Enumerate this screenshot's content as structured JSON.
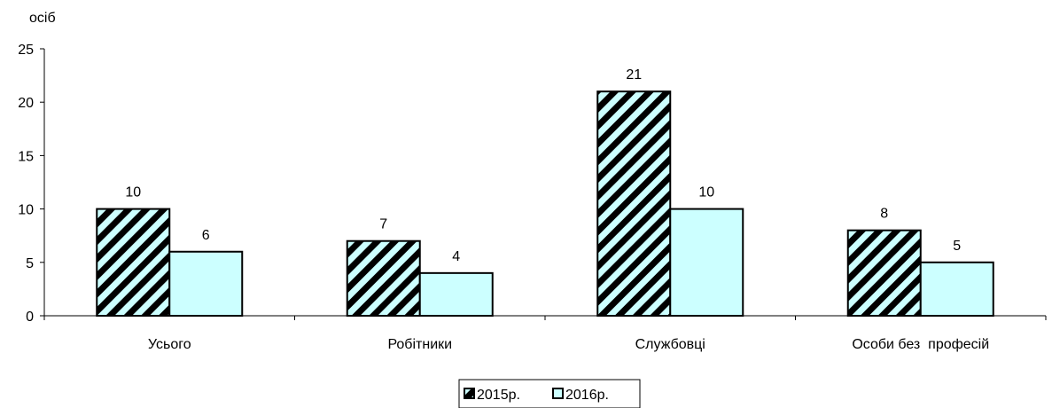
{
  "chart_data": {
    "type": "bar",
    "title": "",
    "ylabel": "осіб",
    "xlabel": "",
    "ylim": [
      0,
      25
    ],
    "yticks": [
      0,
      5,
      10,
      15,
      20,
      25
    ],
    "categories": [
      "Усього",
      "Робітники",
      "Службовці",
      "Особи без  професій"
    ],
    "series": [
      {
        "name": "2015р.",
        "values": [
          10,
          7,
          21,
          8
        ],
        "fill": "hatched",
        "color": "#000000"
      },
      {
        "name": "2016р.",
        "values": [
          6,
          4,
          10,
          5
        ],
        "fill": "solid",
        "color": "#ccffff"
      }
    ],
    "legend_position": "bottom-center",
    "grid": false
  }
}
